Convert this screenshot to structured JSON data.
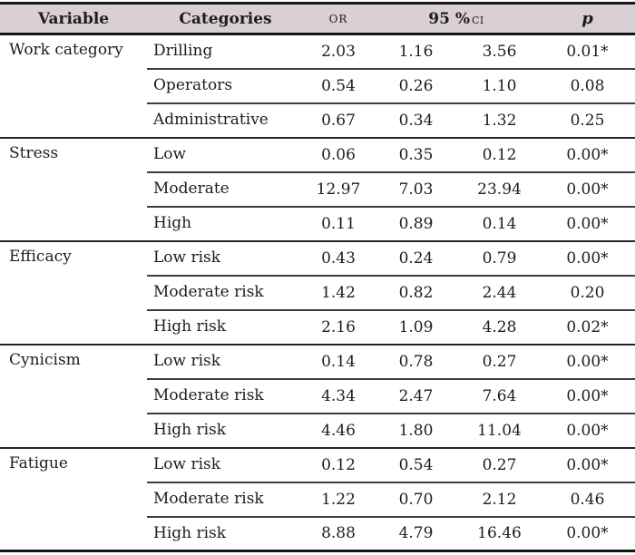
{
  "table": {
    "header": {
      "variable": "Variable",
      "categories": "Categories",
      "or": "OR",
      "ci_main": "95 %",
      "ci_sub": "CI",
      "p": "p"
    },
    "groups": [
      {
        "variable": "Work category",
        "rows": [
          {
            "category": "Drilling",
            "or": "2.03",
            "ci_low": "1.16",
            "ci_high": "3.56",
            "p": "0.01*"
          },
          {
            "category": "Operators",
            "or": "0.54",
            "ci_low": "0.26",
            "ci_high": "1.10",
            "p": "0.08"
          },
          {
            "category": "Administrative",
            "or": "0.67",
            "ci_low": "0.34",
            "ci_high": "1.32",
            "p": "0.25"
          }
        ]
      },
      {
        "variable": "Stress",
        "rows": [
          {
            "category": "Low",
            "or": "0.06",
            "ci_low": "0.35",
            "ci_high": "0.12",
            "p": "0.00*"
          },
          {
            "category": "Moderate",
            "or": "12.97",
            "ci_low": "7.03",
            "ci_high": "23.94",
            "p": "0.00*"
          },
          {
            "category": "High",
            "or": "0.11",
            "ci_low": "0.89",
            "ci_high": "0.14",
            "p": "0.00*"
          }
        ]
      },
      {
        "variable": "Efficacy",
        "rows": [
          {
            "category": "Low risk",
            "or": "0.43",
            "ci_low": "0.24",
            "ci_high": "0.79",
            "p": "0.00*"
          },
          {
            "category": "Moderate risk",
            "or": "1.42",
            "ci_low": "0.82",
            "ci_high": "2.44",
            "p": "0.20"
          },
          {
            "category": "High risk",
            "or": "2.16",
            "ci_low": "1.09",
            "ci_high": "4.28",
            "p": "0.02*"
          }
        ]
      },
      {
        "variable": "Cynicism",
        "rows": [
          {
            "category": "Low risk",
            "or": "0.14",
            "ci_low": "0.78",
            "ci_high": "0.27",
            "p": "0.00*"
          },
          {
            "category": "Moderate risk",
            "or": "4.34",
            "ci_low": "2.47",
            "ci_high": "7.64",
            "p": "0.00*"
          },
          {
            "category": "High risk",
            "or": "4.46",
            "ci_low": "1.80",
            "ci_high": "11.04",
            "p": "0.00*"
          }
        ]
      },
      {
        "variable": "Fatigue",
        "rows": [
          {
            "category": "Low risk",
            "or": "0.12",
            "ci_low": "0.54",
            "ci_high": "0.27",
            "p": "0.00*"
          },
          {
            "category": "Moderate risk",
            "or": "1.22",
            "ci_low": "0.70",
            "ci_high": "2.12",
            "p": "0.46"
          },
          {
            "category": "High risk",
            "or": "8.88",
            "ci_low": "4.79",
            "ci_high": "16.46",
            "p": "0.00*"
          }
        ]
      }
    ],
    "colors": {
      "header_bg": "#d9cfd5",
      "line": "#3d3d3d",
      "line_strong": "#242424",
      "outer_line": "#161616",
      "text": "#1d1d1d"
    }
  }
}
